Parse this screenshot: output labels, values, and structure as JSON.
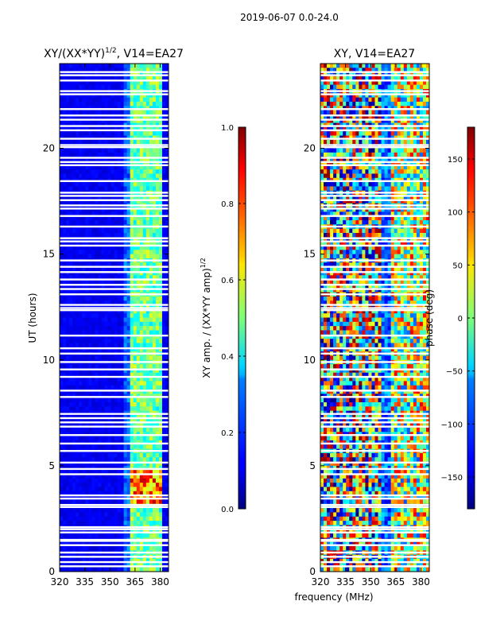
{
  "figure_title": "2019-06-07 0.0-24.0",
  "chart_data": [
    {
      "type": "heatmap",
      "title_main": "XY/(XX*YY)",
      "title_sup": "1/2",
      "title_tail": ", V14=EA27",
      "xlabel": "",
      "ylabel": "UT (hours)",
      "xlim": [
        320,
        385
      ],
      "ylim": [
        0,
        24
      ],
      "xticks": [
        320,
        335,
        350,
        365,
        380
      ],
      "yticks": [
        0,
        5,
        10,
        15,
        20
      ],
      "colorbar": {
        "label_main": "XY amp. / (XX*YY amp)",
        "label_sup": "1/2",
        "ticks": [
          "0.0",
          "0.2",
          "0.4",
          "0.6",
          "0.8",
          "1.0"
        ],
        "tick_values": [
          0.0,
          0.2,
          0.4,
          0.6,
          0.8,
          1.0
        ],
        "range": [
          0.0,
          1.0
        ]
      },
      "description_bands_mhz": [
        [
          362,
          382
        ]
      ]
    },
    {
      "type": "heatmap",
      "title": "XY, V14=EA27",
      "xlabel": "frequency (MHz)",
      "ylabel": "",
      "xlim": [
        320,
        385
      ],
      "ylim": [
        0,
        24
      ],
      "xticks": [
        320,
        335,
        350,
        365,
        380
      ],
      "yticks": [
        0,
        5,
        10,
        15,
        20
      ],
      "colorbar": {
        "label": "phase (deg)",
        "ticks": [
          "150",
          "100",
          "50",
          "0",
          "−50",
          "−100",
          "−150"
        ],
        "tick_values": [
          150,
          100,
          50,
          0,
          -50,
          -100,
          -150
        ],
        "range": [
          -180,
          180
        ]
      }
    }
  ],
  "flagged_hours": [
    0.25,
    0.45,
    0.7,
    0.9,
    1.25,
    1.45,
    1.5,
    1.85,
    2.0,
    2.1,
    3.05,
    3.15,
    3.45,
    3.6,
    4.6,
    4.85,
    5.15,
    5.7,
    6.05,
    6.45,
    6.85,
    7.05,
    7.25,
    7.45,
    8.25,
    8.55,
    9.2,
    9.55,
    9.9,
    10.3,
    10.55,
    11.15,
    12.35,
    12.45,
    12.6,
    13.1,
    13.35,
    13.55,
    13.8,
    14.15,
    14.4,
    14.7,
    15.4,
    15.6,
    15.75,
    16.3,
    16.8,
    17.15,
    17.3,
    17.55,
    17.75,
    17.9,
    18.45,
    19.2,
    19.35,
    19.55,
    20.05,
    20.15,
    20.45,
    20.85,
    21.05,
    21.35,
    21.55,
    21.85,
    22.55,
    22.7,
    23.2,
    23.45,
    23.6
  ]
}
